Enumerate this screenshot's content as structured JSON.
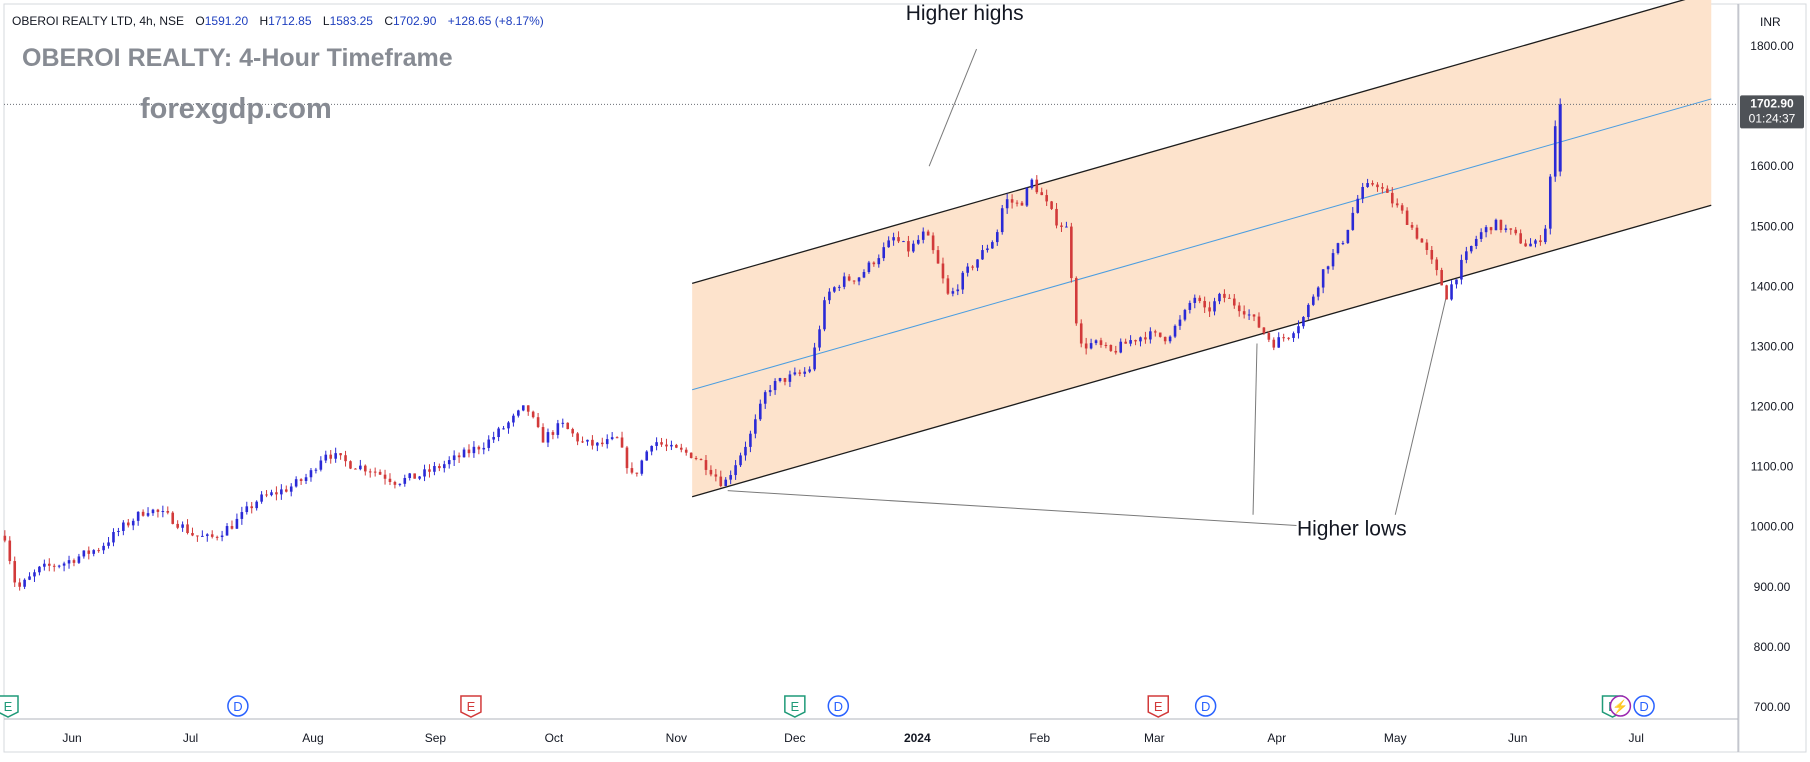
{
  "header": {
    "symbol": "OBEROI REALTY LTD, 4h, NSE",
    "open_label": "O",
    "open": "1591.20",
    "high_label": "H",
    "high": "1712.85",
    "low_label": "L",
    "low": "1583.25",
    "close_label": "C",
    "close": "1702.90",
    "change": "+128.65 (+8.17%)"
  },
  "overlay": {
    "title": "OBEROI REALTY: 4-Hour Timeframe",
    "watermark": "forexgdp.com"
  },
  "colors": {
    "up": "#2a2ad6",
    "down": "#d23a3a",
    "channel_fill": "#fde3cc",
    "midline": "#4a9de0",
    "header_value": "#1e3fbf",
    "header_change": "#1e3fbf",
    "price_badge": "#4e5257"
  },
  "chart_data": {
    "type": "candlestick",
    "currency": "INR",
    "ylim": [
      680,
      1870
    ],
    "y_ticks": [
      700,
      800,
      900,
      1000,
      1100,
      1200,
      1300,
      1400,
      1500,
      1600,
      1700,
      1800
    ],
    "y_tick_labels": [
      "700.00",
      "800.00",
      "900.00",
      "1000.00",
      "1100.00",
      "1200.00",
      "1300.00",
      "1400.00",
      "1500.00",
      "1600.00",
      "1700.00",
      "1800.00"
    ],
    "x_axis_labels": [
      {
        "date": "2023-06-01",
        "label": "Jun",
        "bold": false
      },
      {
        "date": "2023-07-01",
        "label": "Jul",
        "bold": false
      },
      {
        "date": "2023-08-01",
        "label": "Aug",
        "bold": false
      },
      {
        "date": "2023-09-01",
        "label": "Sep",
        "bold": false
      },
      {
        "date": "2023-10-01",
        "label": "Oct",
        "bold": false
      },
      {
        "date": "2023-11-01",
        "label": "Nov",
        "bold": false
      },
      {
        "date": "2023-12-01",
        "label": "Dec",
        "bold": false
      },
      {
        "date": "2024-01-01",
        "label": "2024",
        "bold": true
      },
      {
        "date": "2024-02-01",
        "label": "Feb",
        "bold": false
      },
      {
        "date": "2024-03-01",
        "label": "Mar",
        "bold": false
      },
      {
        "date": "2024-04-01",
        "label": "Apr",
        "bold": false
      },
      {
        "date": "2024-05-01",
        "label": "May",
        "bold": false
      },
      {
        "date": "2024-06-01",
        "label": "Jun",
        "bold": false
      },
      {
        "date": "2024-07-01",
        "label": "Jul",
        "bold": false
      }
    ],
    "price_path": [
      [
        "2023-05-15",
        985
      ],
      [
        "2023-05-18",
        895
      ],
      [
        "2023-05-24",
        930
      ],
      [
        "2023-05-30",
        940
      ],
      [
        "2023-06-08",
        965
      ],
      [
        "2023-06-14",
        1000
      ],
      [
        "2023-06-20",
        1030
      ],
      [
        "2023-06-26",
        1015
      ],
      [
        "2023-07-02",
        985
      ],
      [
        "2023-07-06",
        980
      ],
      [
        "2023-07-12",
        1005
      ],
      [
        "2023-07-18",
        1045
      ],
      [
        "2023-07-26",
        1065
      ],
      [
        "2023-07-31",
        1085
      ],
      [
        "2023-08-04",
        1125
      ],
      [
        "2023-08-10",
        1105
      ],
      [
        "2023-08-16",
        1095
      ],
      [
        "2023-08-22",
        1075
      ],
      [
        "2023-08-28",
        1085
      ],
      [
        "2023-09-02",
        1100
      ],
      [
        "2023-09-08",
        1120
      ],
      [
        "2023-09-14",
        1140
      ],
      [
        "2023-09-20",
        1175
      ],
      [
        "2023-09-24",
        1200
      ],
      [
        "2023-09-28",
        1145
      ],
      [
        "2023-10-03",
        1170
      ],
      [
        "2023-10-08",
        1140
      ],
      [
        "2023-10-12",
        1135
      ],
      [
        "2023-10-17",
        1145
      ],
      [
        "2023-10-21",
        1080
      ],
      [
        "2023-10-26",
        1145
      ],
      [
        "2023-10-30",
        1130
      ],
      [
        "2023-11-05",
        1120
      ],
      [
        "2023-11-09",
        1100
      ],
      [
        "2023-11-13",
        1070
      ],
      [
        "2023-11-20",
        1155
      ],
      [
        "2023-11-24",
        1230
      ],
      [
        "2023-11-28",
        1245
      ],
      [
        "2023-12-03",
        1255
      ],
      [
        "2023-12-05",
        1265
      ],
      [
        "2023-12-09",
        1385
      ],
      [
        "2023-12-13",
        1410
      ],
      [
        "2023-12-17",
        1415
      ],
      [
        "2023-12-22",
        1450
      ],
      [
        "2023-12-26",
        1480
      ],
      [
        "2023-12-30",
        1460
      ],
      [
        "2024-01-03",
        1490
      ],
      [
        "2024-01-06",
        1440
      ],
      [
        "2024-01-09",
        1380
      ],
      [
        "2024-01-13",
        1420
      ],
      [
        "2024-01-18",
        1460
      ],
      [
        "2024-01-21",
        1485
      ],
      [
        "2024-01-23",
        1545
      ],
      [
        "2024-01-27",
        1535
      ],
      [
        "2024-01-30",
        1575
      ],
      [
        "2024-02-02",
        1545
      ],
      [
        "2024-02-05",
        1510
      ],
      [
        "2024-02-08",
        1495
      ],
      [
        "2024-02-09",
        1420
      ],
      [
        "2024-02-11",
        1300
      ],
      [
        "2024-02-15",
        1305
      ],
      [
        "2024-02-19",
        1290
      ],
      [
        "2024-02-24",
        1310
      ],
      [
        "2024-02-28",
        1320
      ],
      [
        "2024-03-04",
        1315
      ],
      [
        "2024-03-08",
        1345
      ],
      [
        "2024-03-11",
        1385
      ],
      [
        "2024-03-14",
        1355
      ],
      [
        "2024-03-18",
        1385
      ],
      [
        "2024-03-24",
        1360
      ],
      [
        "2024-03-28",
        1330
      ],
      [
        "2024-03-31",
        1305
      ],
      [
        "2024-04-04",
        1320
      ],
      [
        "2024-04-08",
        1350
      ],
      [
        "2024-04-13",
        1430
      ],
      [
        "2024-04-18",
        1480
      ],
      [
        "2024-04-22",
        1555
      ],
      [
        "2024-04-26",
        1575
      ],
      [
        "2024-04-29",
        1550
      ],
      [
        "2024-05-03",
        1520
      ],
      [
        "2024-05-08",
        1470
      ],
      [
        "2024-05-12",
        1415
      ],
      [
        "2024-05-14",
        1385
      ],
      [
        "2024-05-18",
        1440
      ],
      [
        "2024-05-22",
        1485
      ],
      [
        "2024-05-26",
        1505
      ],
      [
        "2024-05-30",
        1490
      ],
      [
        "2024-06-03",
        1470
      ],
      [
        "2024-06-06",
        1470
      ],
      [
        "2024-06-08",
        1500
      ],
      [
        "2024-06-09",
        1570
      ],
      [
        "2024-06-10",
        1620
      ],
      [
        "2024-06-11",
        1703
      ]
    ],
    "last_price": "1702.90",
    "countdown": "01:24:37",
    "channel": {
      "upper": [
        [
          "2023-11-05",
          1405
        ],
        [
          "2024-07-20",
          1890
        ]
      ],
      "lower": [
        [
          "2023-11-05",
          1050
        ],
        [
          "2024-07-20",
          1535
        ]
      ],
      "middle": [
        [
          "2023-11-05",
          1228
        ],
        [
          "2024-07-20",
          1712
        ]
      ]
    },
    "annotations": [
      {
        "text": "Higher highs",
        "date": "2024-01-13",
        "price": 1843,
        "pointers": [
          [
            "2024-01-16",
            1795,
            "2024-01-04",
            1600
          ]
        ]
      },
      {
        "text": "Higher lows",
        "date": "2024-04-20",
        "price": 985,
        "pointers": [
          [
            "2024-04-06",
            1002,
            "2023-11-14",
            1060
          ],
          [
            "2024-03-26",
            1020,
            "2024-03-27",
            1305
          ],
          [
            "2024-05-01",
            1020,
            "2024-05-14",
            1385
          ]
        ]
      }
    ],
    "events": [
      {
        "date": "2023-05-15",
        "letter": "E",
        "color": "#1f9a78",
        "partial": true
      },
      {
        "date": "2023-07-13",
        "letter": "D",
        "color": "#2962ff"
      },
      {
        "date": "2023-09-10",
        "letter": "E",
        "color": "#d23a3a"
      },
      {
        "date": "2023-12-01",
        "letter": "E",
        "color": "#1f9a78"
      },
      {
        "date": "2023-12-12",
        "letter": "D",
        "color": "#2962ff"
      },
      {
        "date": "2024-03-02",
        "letter": "E",
        "color": "#d23a3a"
      },
      {
        "date": "2024-03-14",
        "letter": "D",
        "color": "#2962ff"
      },
      {
        "date": "2024-06-25",
        "letter": "E",
        "color": "#1f9a78"
      },
      {
        "date": "2024-06-27",
        "letter": "⚡",
        "color": "#9c27b0"
      },
      {
        "date": "2024-07-03",
        "letter": "D",
        "color": "#2962ff"
      }
    ]
  }
}
